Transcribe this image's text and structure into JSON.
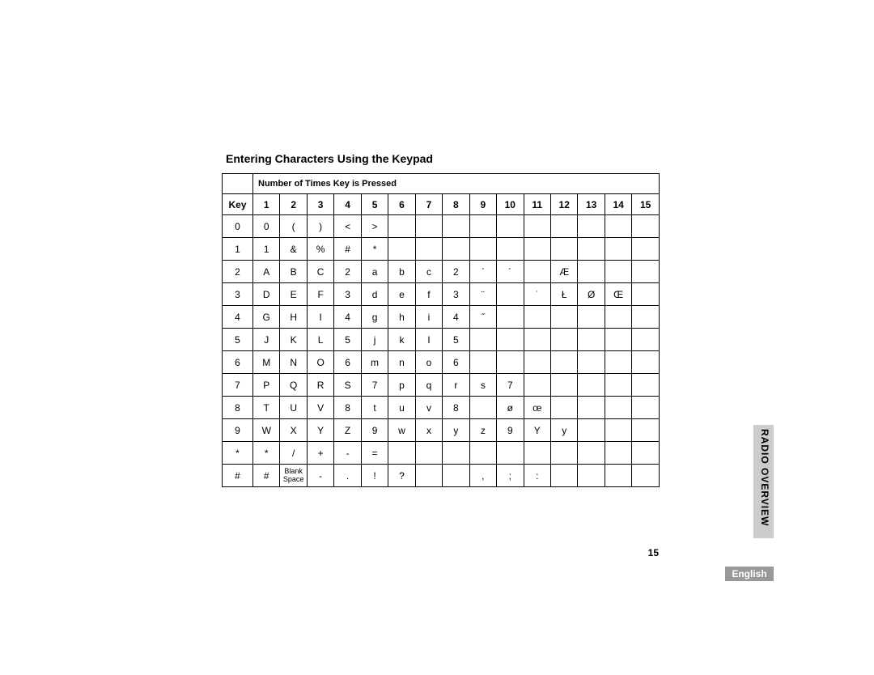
{
  "title": "Entering Characters Using the Keypad",
  "subheader": "Number of Times Key is Pressed",
  "col_key": "Key",
  "cols": [
    "1",
    "2",
    "3",
    "4",
    "5",
    "6",
    "7",
    "8",
    "9",
    "10",
    "11",
    "12",
    "13",
    "14",
    "15"
  ],
  "rows": [
    {
      "key": "0",
      "cells": [
        "0",
        "(",
        ")",
        "<",
        ">",
        "",
        "",
        "",
        "",
        "",
        "",
        "",
        "",
        "",
        ""
      ]
    },
    {
      "key": "1",
      "cells": [
        "1",
        "&",
        "%",
        "#",
        "*",
        "",
        "",
        "",
        "",
        "",
        "",
        "",
        "",
        "",
        ""
      ]
    },
    {
      "key": "2",
      "cells": [
        "A",
        "B",
        "C",
        "2",
        "a",
        "b",
        "c",
        "2",
        "`",
        "´",
        "",
        "Æ",
        "",
        "",
        ""
      ]
    },
    {
      "key": "3",
      "cells": [
        "D",
        "E",
        "F",
        "3",
        "d",
        "e",
        "f",
        "3",
        "¨",
        "",
        "˙",
        "Ł",
        "Ø",
        "Œ",
        ""
      ]
    },
    {
      "key": "4",
      "cells": [
        "G",
        "H",
        "I",
        "4",
        "g",
        "h",
        "i",
        "4",
        "˝",
        "",
        "",
        "",
        "",
        "",
        ""
      ]
    },
    {
      "key": "5",
      "cells": [
        "J",
        "K",
        "L",
        "5",
        "j",
        "k",
        "l",
        "5",
        "",
        "",
        "",
        "",
        "",
        "",
        ""
      ]
    },
    {
      "key": "6",
      "cells": [
        "M",
        "N",
        "O",
        "6",
        "m",
        "n",
        "o",
        "6",
        "",
        "",
        "",
        "",
        "",
        "",
        ""
      ]
    },
    {
      "key": "7",
      "cells": [
        "P",
        "Q",
        "R",
        "S",
        "7",
        "p",
        "q",
        "r",
        "s",
        "7",
        "",
        "",
        "",
        "",
        ""
      ]
    },
    {
      "key": "8",
      "cells": [
        "T",
        "U",
        "V",
        "8",
        "t",
        "u",
        "v",
        "8",
        "",
        "ø",
        "œ",
        "",
        "",
        "",
        ""
      ]
    },
    {
      "key": "9",
      "cells": [
        "W",
        "X",
        "Y",
        "Z",
        "9",
        "w",
        "x",
        "y",
        "z",
        "9",
        "Y",
        "y",
        "",
        "",
        ""
      ]
    },
    {
      "key": "*",
      "cells": [
        "*",
        "/",
        "+",
        "-",
        "=",
        "",
        "",
        "",
        "",
        "",
        "",
        "",
        "",
        "",
        ""
      ]
    },
    {
      "key": "#",
      "cells": [
        "#",
        "Blank\nSpace",
        "-",
        ".",
        "!",
        "?",
        "",
        "",
        ",",
        ";",
        ":",
        "",
        "",
        "",
        ""
      ]
    }
  ],
  "side_tab": "RADIO OVERVIEW",
  "language": "English",
  "page_number": "15"
}
